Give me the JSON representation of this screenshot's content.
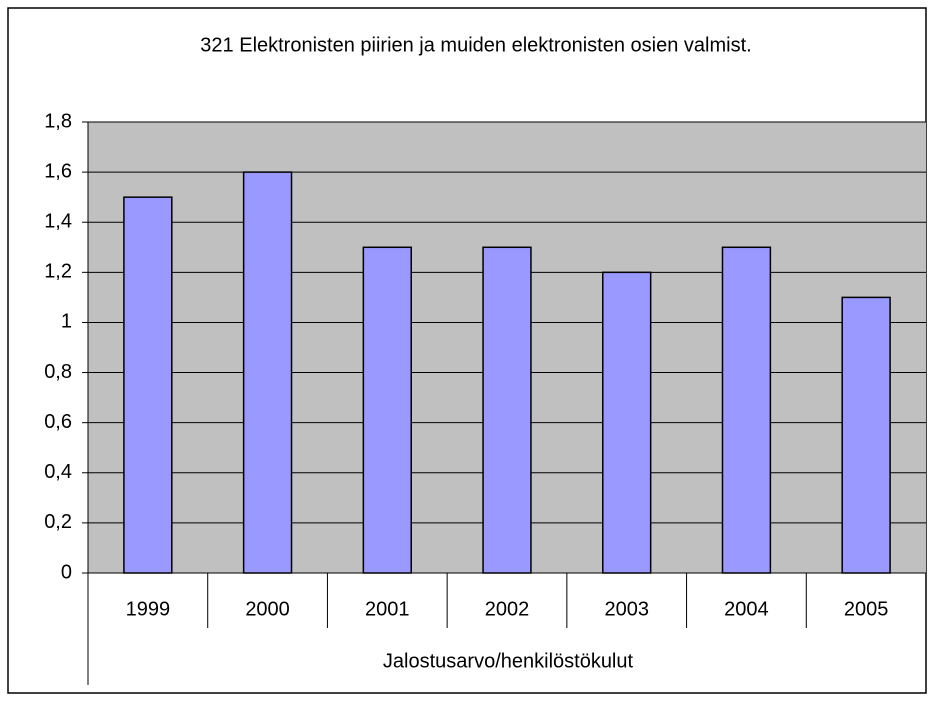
{
  "chart_data": {
    "type": "bar",
    "title": "321 Elektronisten piirien ja muiden elektronisten osien valmist.",
    "x_label": "Jalostusarvo/henkilöstökulut",
    "categories": [
      "1999",
      "2000",
      "2001",
      "2002",
      "2003",
      "2004",
      "2005"
    ],
    "values": [
      1.5,
      1.6,
      1.3,
      1.3,
      1.2,
      1.3,
      1.1
    ],
    "color": "#9999ff",
    "plot_background": "#c0c0c0",
    "ylim": [
      0,
      1.8
    ],
    "yticks": [
      0,
      {
        "value": 0.2,
        "label": "0,2"
      },
      {
        "value": 0.4,
        "label": "0,4"
      },
      {
        "value": 0.6,
        "label": "0,6"
      },
      {
        "value": 0.8,
        "label": "0,8"
      },
      1,
      {
        "value": 1.2,
        "label": "1,2"
      },
      {
        "value": 1.4,
        "label": "1,4"
      },
      {
        "value": 1.6,
        "label": "1,6"
      },
      {
        "value": 1.8,
        "label": "1,8"
      }
    ],
    "grid": true
  }
}
